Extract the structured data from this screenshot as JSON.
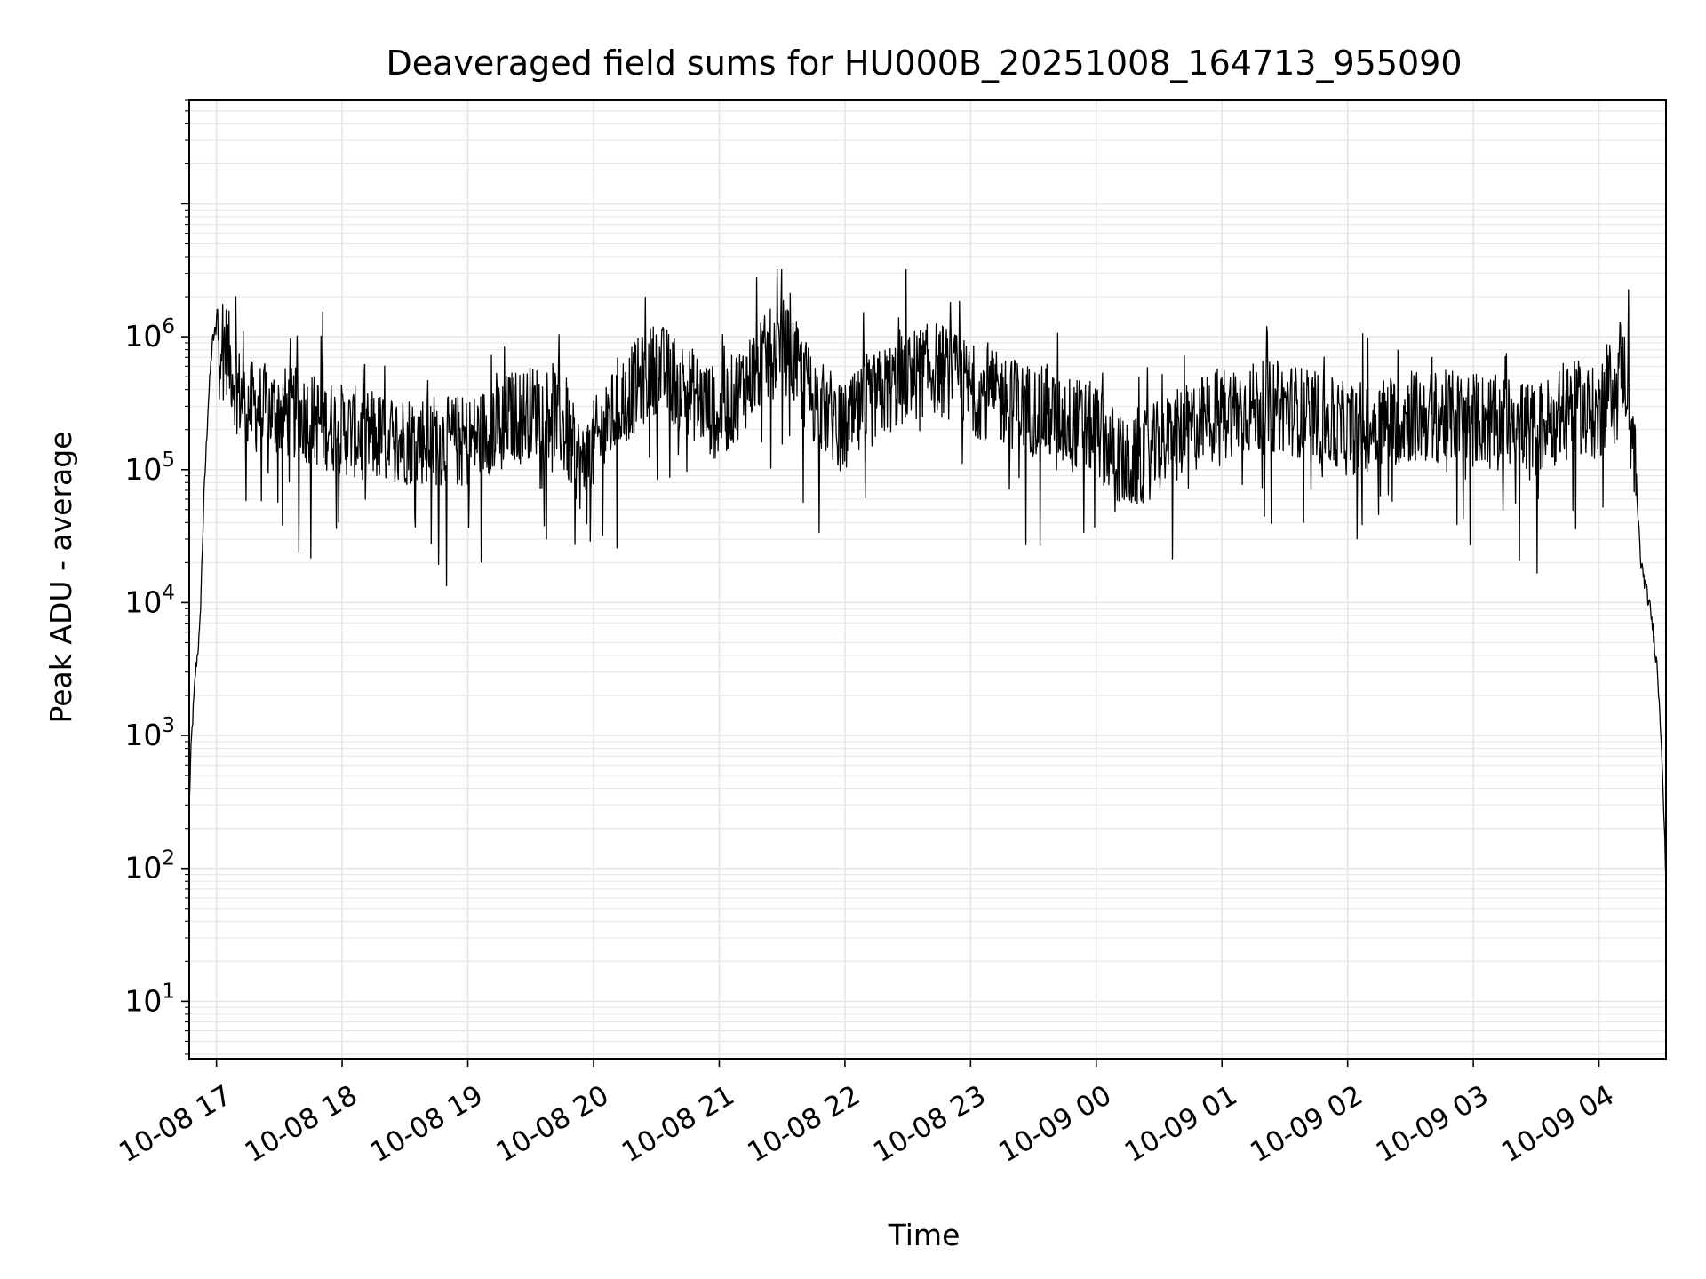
{
  "chart_data": {
    "type": "line",
    "title": "Deaveraged field sums for HU000B_20251008_164713_955090",
    "xlabel": "Time",
    "ylabel": "Peak ADU - average",
    "y_scale": "log",
    "ylim": [
      3.7,
      60000000
    ],
    "xlim": [
      "2025-10-08 16:47",
      "2025-10-09 04:32"
    ],
    "grid": true,
    "line_color": "#000000",
    "grid_color": "#e6e6e6",
    "x_ticks": [
      {
        "value": "2025-10-08 17:00",
        "label": "10-08 17"
      },
      {
        "value": "2025-10-08 18:00",
        "label": "10-08 18"
      },
      {
        "value": "2025-10-08 19:00",
        "label": "10-08 19"
      },
      {
        "value": "2025-10-08 20:00",
        "label": "10-08 20"
      },
      {
        "value": "2025-10-08 21:00",
        "label": "10-08 21"
      },
      {
        "value": "2025-10-08 22:00",
        "label": "10-08 22"
      },
      {
        "value": "2025-10-08 23:00",
        "label": "10-08 23"
      },
      {
        "value": "2025-10-09 00:00",
        "label": "10-09 00"
      },
      {
        "value": "2025-10-09 01:00",
        "label": "10-09 01"
      },
      {
        "value": "2025-10-09 02:00",
        "label": "10-09 02"
      },
      {
        "value": "2025-10-09 03:00",
        "label": "10-09 03"
      },
      {
        "value": "2025-10-09 04:00",
        "label": "10-09 04"
      }
    ],
    "y_ticks": [
      {
        "value": 10,
        "base": "10",
        "exp": "1"
      },
      {
        "value": 100,
        "base": "10",
        "exp": "2"
      },
      {
        "value": 1000,
        "base": "10",
        "exp": "3"
      },
      {
        "value": 10000,
        "base": "10",
        "exp": "4"
      },
      {
        "value": 100000,
        "base": "10",
        "exp": "5"
      },
      {
        "value": 1000000,
        "base": "10",
        "exp": "6"
      }
    ],
    "series": [
      {
        "x": [
          "2025-10-08 16:47",
          "2025-10-08 16:48",
          "2025-10-08 16:50",
          "2025-10-08 16:52",
          "2025-10-08 16:54",
          "2025-10-08 16:56",
          "2025-10-08 16:58",
          "2025-10-08 17:00",
          "2025-10-08 17:03",
          "2025-10-08 17:06",
          "2025-10-08 17:10",
          "2025-10-08 17:15",
          "2025-10-08 17:25",
          "2025-10-08 17:40",
          "2025-10-08 18:00",
          "2025-10-08 18:20",
          "2025-10-08 18:40",
          "2025-10-08 19:00",
          "2025-10-08 19:20",
          "2025-10-08 19:40",
          "2025-10-08 19:55",
          "2025-10-08 20:00",
          "2025-10-08 20:15",
          "2025-10-08 20:30",
          "2025-10-08 20:45",
          "2025-10-08 21:00",
          "2025-10-08 21:15",
          "2025-10-08 21:30",
          "2025-10-08 21:45",
          "2025-10-08 22:00",
          "2025-10-08 22:15",
          "2025-10-08 22:30",
          "2025-10-08 22:45",
          "2025-10-08 23:00",
          "2025-10-08 23:30",
          "2025-10-09 00:00",
          "2025-10-09 00:15",
          "2025-10-09 00:30",
          "2025-10-09 01:00",
          "2025-10-09 01:30",
          "2025-10-09 02:00",
          "2025-10-09 02:30",
          "2025-10-09 03:00",
          "2025-10-09 03:30",
          "2025-10-09 03:50",
          "2025-10-09 04:00",
          "2025-10-09 04:10",
          "2025-10-09 04:15",
          "2025-10-09 04:20",
          "2025-10-09 04:25",
          "2025-10-09 04:28",
          "2025-10-09 04:30",
          "2025-10-09 04:32"
        ],
        "values": [
          300,
          900,
          3000,
          6000,
          60000,
          300000,
          900000,
          1200000,
          1000000,
          700000,
          400000,
          300000,
          280000,
          260000,
          200000,
          170000,
          170000,
          160000,
          250000,
          300000,
          100000,
          150000,
          350000,
          600000,
          400000,
          250000,
          500000,
          900000,
          350000,
          200000,
          350000,
          500000,
          600000,
          400000,
          280000,
          200000,
          100000,
          150000,
          280000,
          300000,
          200000,
          250000,
          250000,
          200000,
          300000,
          250000,
          650000,
          400000,
          20000,
          8000,
          3000,
          800,
          80
        ]
      }
    ]
  }
}
